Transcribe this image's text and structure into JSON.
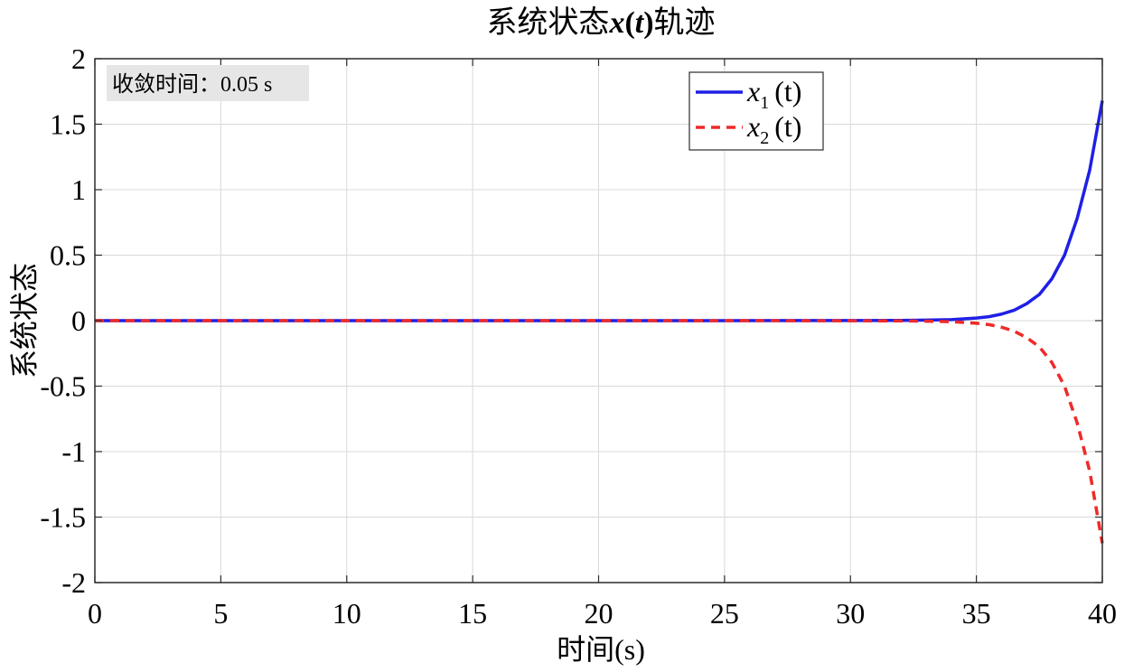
{
  "chart_data": {
    "type": "line",
    "title_prefix": "系统状态",
    "title_var": "x",
    "title_open": "(",
    "title_arg": "t",
    "title_close": ")",
    "title_suffix": "轨迹",
    "xlabel": "时间(s)",
    "ylabel": "系统状态",
    "xlim": [
      0,
      40
    ],
    "ylim": [
      -2,
      2
    ],
    "xticks": [
      0,
      5,
      10,
      15,
      20,
      25,
      30,
      35,
      40
    ],
    "xtick_labels": [
      "0",
      "5",
      "10",
      "15",
      "20",
      "25",
      "30",
      "35",
      "40"
    ],
    "yticks": [
      2,
      1.5,
      1,
      0.5,
      0,
      -0.5,
      -1,
      -1.5,
      -2
    ],
    "ytick_labels": [
      "2",
      "1.5",
      "1",
      "0.5",
      "0",
      "-0.5",
      "-1",
      "-1.5",
      "-2"
    ],
    "grid": true,
    "legend_position": "top-right",
    "annotation": "收敛时间：0.05 s",
    "series": [
      {
        "legend_var": "x",
        "legend_sub": "1",
        "legend_arg": "(t)",
        "color": "#1f1fe6",
        "dash": "solid",
        "x": [
          0,
          5,
          10,
          15,
          20,
          25,
          30,
          32,
          33,
          34,
          35,
          35.5,
          36,
          36.5,
          37,
          37.5,
          38,
          38.5,
          39,
          39.5,
          40
        ],
        "y": [
          0,
          0,
          0,
          0,
          0,
          0,
          0.001,
          0.002,
          0.004,
          0.008,
          0.02,
          0.03,
          0.05,
          0.08,
          0.13,
          0.2,
          0.32,
          0.5,
          0.78,
          1.15,
          1.68
        ]
      },
      {
        "legend_var": "x",
        "legend_sub": "2",
        "legend_arg": "(t)",
        "color": "#ee2a2a",
        "dash": "dashed",
        "x": [
          0,
          5,
          10,
          15,
          20,
          25,
          30,
          32,
          33,
          34,
          35,
          35.5,
          36,
          36.5,
          37,
          37.5,
          38,
          38.5,
          39,
          39.5,
          40
        ],
        "y": [
          0,
          0,
          0,
          0,
          0,
          0,
          -0.001,
          -0.002,
          -0.004,
          -0.008,
          -0.02,
          -0.03,
          -0.05,
          -0.08,
          -0.13,
          -0.2,
          -0.32,
          -0.5,
          -0.78,
          -1.15,
          -1.7
        ]
      }
    ]
  }
}
